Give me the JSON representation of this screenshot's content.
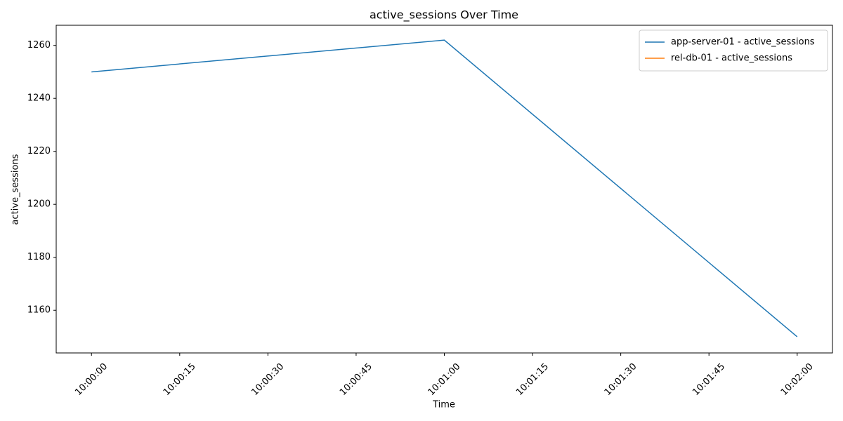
{
  "chart_data": {
    "type": "line",
    "title": "active_sessions Over Time",
    "xlabel": "Time",
    "ylabel": "active_sessions",
    "x": [
      "10:00:00",
      "10:01:00",
      "10:02:00"
    ],
    "series": [
      {
        "name": "app-server-01 - active_sessions",
        "color": "#1f77b4",
        "values": [
          1250,
          1262,
          1150
        ]
      },
      {
        "name": "rel-db-01 - active_sessions",
        "color": "#ff7f0e",
        "values": [
          null,
          null,
          null
        ]
      }
    ],
    "xlim": [
      "09:59:54",
      "10:02:06"
    ],
    "xticks": [
      "10:00:00",
      "10:00:15",
      "10:00:30",
      "10:00:45",
      "10:01:00",
      "10:01:15",
      "10:01:30",
      "10:01:45",
      "10:02:00"
    ],
    "ylim": [
      1143.9,
      1267.6
    ],
    "yticks": [
      1160,
      1180,
      1200,
      1220,
      1240,
      1260
    ],
    "legend": "upper right",
    "grid": false
  }
}
